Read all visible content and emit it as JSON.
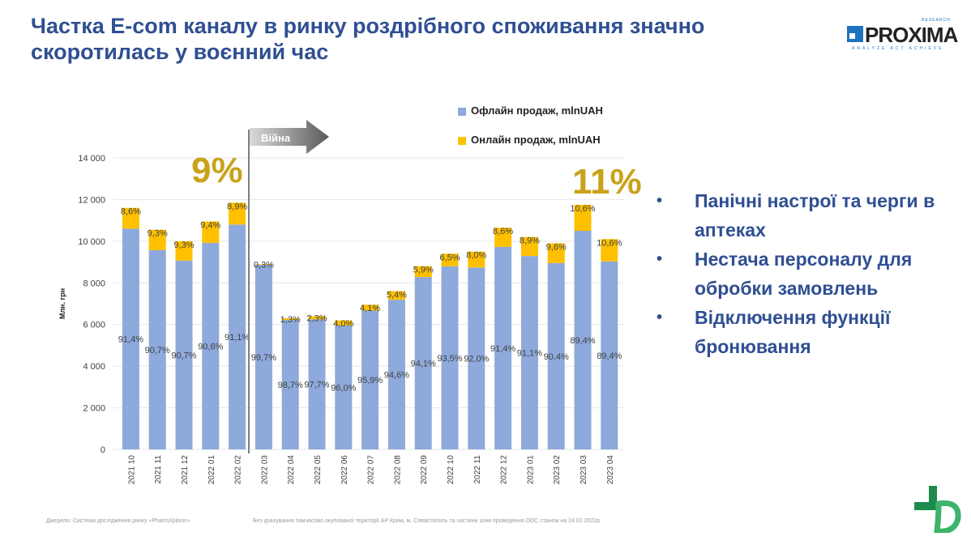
{
  "title": "Частка E-com каналу в ринку роздрібного споживання значно скоротилась у воєнний час",
  "logo": {
    "name": "PROXIMA",
    "top": "RESEARCH",
    "tagline": "ANALYZE ACT ACHIEVE"
  },
  "war_label": "Війна",
  "highlight_before": "9%",
  "highlight_after": "11%",
  "bullets": [
    "Панічні настрої та черги в аптеках",
    "Нестача персоналу для обробки замовлень",
    "Відключення функції бронювання"
  ],
  "footer": {
    "source": "Джерело:  Система дослідження ринку «PharmXplorer»",
    "note": "Без урахування тимчасово окупованої території АР Крим, м. Севастополь та частини зони проведення  ООС станом на 24.02.2022р."
  },
  "colors": {
    "offline": "#8EA9DB",
    "online": "#FFC000",
    "title": "#2F4F92",
    "highlight": "#C9A21A"
  },
  "chart_data": {
    "type": "bar",
    "stacked": true,
    "ylabel": "Млн. грн",
    "ylim": [
      0,
      14000
    ],
    "yticks": [
      "0",
      "2 000",
      "4 000",
      "6 000",
      "8 000",
      "10 000",
      "12 000",
      "14 000"
    ],
    "grid": true,
    "legend_position": "top-right",
    "categories": [
      "2021 10",
      "2021 11",
      "2021 12",
      "2022 01",
      "2022 02",
      "2022 03",
      "2022 04",
      "2022 05",
      "2022 06",
      "2022 07",
      "2022 08",
      "2022 09",
      "2022 10",
      "2022 11",
      "2022 12",
      "2023 01",
      "2023 02",
      "2023 03",
      "2023 04"
    ],
    "series": [
      {
        "name": "Офлайн продаж, mlnUAH",
        "values": [
          10600,
          9570,
          9070,
          9920,
          10800,
          8870,
          6220,
          6250,
          5950,
          6670,
          7190,
          8280,
          8790,
          8740,
          9730,
          9290,
          8950,
          10500,
          9030
        ],
        "labels": [
          "91,4%",
          "90,7%",
          "90,7%",
          "90,6%",
          "91,1%",
          "99,7%",
          "98,7%",
          "97,7%",
          "96,0%",
          "95,9%",
          "94,6%",
          "94,1%",
          "93,5%",
          "92,0%",
          "91,4%",
          "91,1%",
          "90,4%",
          "89,4%",
          "89,4%"
        ]
      },
      {
        "name": "Онлайн продаж, mlnUAH",
        "values": [
          1000,
          980,
          930,
          1030,
          1050,
          30,
          80,
          150,
          250,
          280,
          410,
          520,
          610,
          760,
          920,
          910,
          950,
          1250,
          1070
        ],
        "labels": [
          "8,6%",
          "9,3%",
          "9,3%",
          "9,4%",
          "8,9%",
          "0,3%",
          "1,3%",
          "2,3%",
          "4,0%",
          "4,1%",
          "5,4%",
          "5,9%",
          "6,5%",
          "8,0%",
          "8,6%",
          "8,9%",
          "9,6%",
          "10,6%",
          "10,6%"
        ]
      }
    ]
  }
}
